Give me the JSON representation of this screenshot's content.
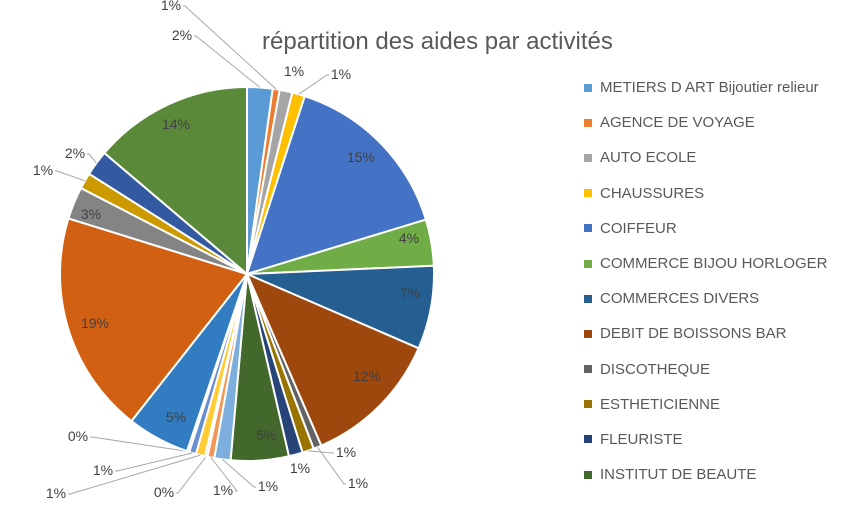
{
  "chart_data": {
    "type": "pie",
    "title": "répartition des aides par activités",
    "legend_position": "right",
    "legend": [
      "METIERS D ART Bijoutier relieur",
      "AGENCE DE VOYAGE",
      "AUTO ECOLE",
      "CHAUSSURES",
      "COIFFEUR",
      "COMMERCE BIJOU HORLOGER",
      "COMMERCES DIVERS",
      "DEBIT DE BOISSONS BAR",
      "DISCOTHEQUE",
      "ESTHETICIENNE",
      "FLEURISTE",
      "INSTITUT DE BEAUTE"
    ],
    "slices": [
      {
        "value": 2.2,
        "label": "2%",
        "color": "#5B9BD5"
      },
      {
        "value": 0.6,
        "label": "1%",
        "color": "#ED7D31"
      },
      {
        "value": 1.1,
        "label": "1%",
        "color": "#A5A5A5"
      },
      {
        "value": 1.1,
        "label": "1%",
        "color": "#FFC000"
      },
      {
        "value": 15.3,
        "label": "15%",
        "color": "#4472C4"
      },
      {
        "value": 4.0,
        "label": "4%",
        "color": "#70AD47"
      },
      {
        "value": 7.2,
        "label": "7%",
        "color": "#255E91"
      },
      {
        "value": 12.0,
        "label": "12%",
        "color": "#9E480E"
      },
      {
        "value": 0.7,
        "label": "1%",
        "color": "#636363"
      },
      {
        "value": 1.0,
        "label": "1%",
        "color": "#997300"
      },
      {
        "value": 1.2,
        "label": "1%",
        "color": "#264478"
      },
      {
        "value": 5.0,
        "label": "5%",
        "color": "#43682B"
      },
      {
        "value": 1.4,
        "label": "1%",
        "color": "#7CAFDD"
      },
      {
        "value": 0.6,
        "label": "1%",
        "color": "#F1975A"
      },
      {
        "value": 0.2,
        "label": "0%",
        "color": "#B7B7B7"
      },
      {
        "value": 0.8,
        "label": "1%",
        "color": "#FFCD33"
      },
      {
        "value": 0.6,
        "label": "1%",
        "color": "#698ED0"
      },
      {
        "value": 0.2,
        "label": "0%",
        "color": "#8CC168"
      },
      {
        "value": 5.4,
        "label": "5%",
        "color": "#327DC2"
      },
      {
        "value": 19.2,
        "label": "19%",
        "color": "#D26012"
      },
      {
        "value": 2.8,
        "label": "3%",
        "color": "#848484"
      },
      {
        "value": 1.4,
        "label": "1%",
        "color": "#CC9A00"
      },
      {
        "value": 2.2,
        "label": "2%",
        "color": "#335AA1"
      },
      {
        "value": 13.8,
        "label": "14%",
        "color": "#5A8A39"
      }
    ]
  }
}
